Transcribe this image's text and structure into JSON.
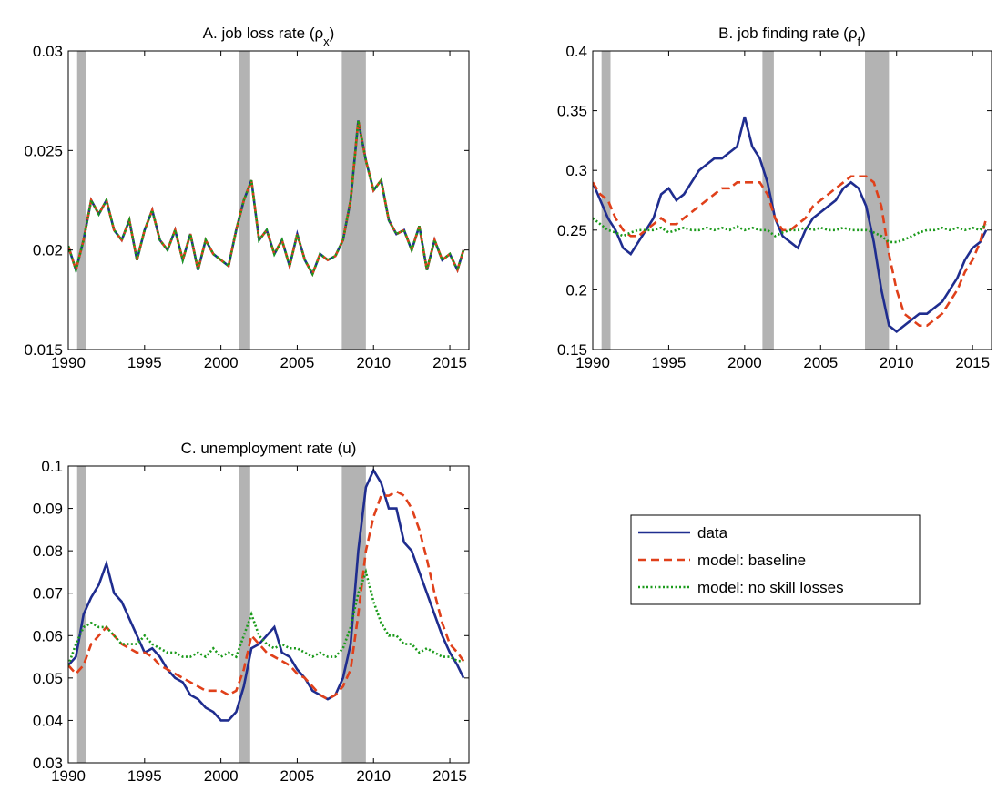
{
  "chart_data": [
    {
      "type": "line",
      "title": [
        "A. job loss rate (ρ",
        "x",
        ")"
      ],
      "x": [
        1990,
        1990.5,
        1991,
        1991.5,
        1992,
        1992.5,
        1993,
        1993.5,
        1994,
        1994.5,
        1995,
        1995.5,
        1996,
        1996.5,
        1997,
        1997.5,
        1998,
        1998.5,
        1999,
        1999.5,
        2000,
        2000.5,
        2001,
        2001.5,
        2002,
        2002.5,
        2003,
        2003.5,
        2004,
        2004.5,
        2005,
        2005.5,
        2006,
        2006.5,
        2007,
        2007.5,
        2008,
        2008.5,
        2009,
        2009.5,
        2010,
        2010.5,
        2011,
        2011.5,
        2012,
        2012.5,
        2013,
        2013.5,
        2014,
        2014.5,
        2015,
        2015.5,
        2015.9
      ],
      "series": [
        {
          "color": "#1f2d8f",
          "style": "solid",
          "values": [
            0.0202,
            0.019,
            0.0205,
            0.0225,
            0.0218,
            0.0225,
            0.021,
            0.0205,
            0.0215,
            0.0195,
            0.021,
            0.022,
            0.0205,
            0.02,
            0.021,
            0.0195,
            0.0208,
            0.019,
            0.0205,
            0.0198,
            0.0195,
            0.0192,
            0.021,
            0.0225,
            0.0235,
            0.0205,
            0.021,
            0.0198,
            0.0205,
            0.0192,
            0.0208,
            0.0195,
            0.0188,
            0.0198,
            0.0195,
            0.0197,
            0.0205,
            0.0225,
            0.0265,
            0.0245,
            0.023,
            0.0235,
            0.0215,
            0.0208,
            0.021,
            0.02,
            0.0212,
            0.019,
            0.0205,
            0.0195,
            0.0198,
            0.019,
            0.02
          ]
        },
        {
          "color": "#e0401a",
          "style": "dashed",
          "values": [
            0.0202,
            0.019,
            0.0205,
            0.0225,
            0.0218,
            0.0225,
            0.021,
            0.0205,
            0.0215,
            0.0195,
            0.021,
            0.022,
            0.0205,
            0.02,
            0.021,
            0.0195,
            0.0208,
            0.019,
            0.0205,
            0.0198,
            0.0195,
            0.0192,
            0.021,
            0.0225,
            0.0235,
            0.0205,
            0.021,
            0.0198,
            0.0205,
            0.0192,
            0.0208,
            0.0195,
            0.0188,
            0.0198,
            0.0195,
            0.0197,
            0.0205,
            0.0225,
            0.0265,
            0.0245,
            0.023,
            0.0235,
            0.0215,
            0.0208,
            0.021,
            0.02,
            0.0212,
            0.019,
            0.0205,
            0.0195,
            0.0198,
            0.019,
            0.02
          ]
        },
        {
          "color": "#1a9a1a",
          "style": "dotted",
          "values": [
            0.0202,
            0.019,
            0.0205,
            0.0225,
            0.0218,
            0.0225,
            0.021,
            0.0205,
            0.0215,
            0.0195,
            0.021,
            0.022,
            0.0205,
            0.02,
            0.021,
            0.0195,
            0.0208,
            0.019,
            0.0205,
            0.0198,
            0.0195,
            0.0192,
            0.021,
            0.0225,
            0.0235,
            0.0205,
            0.021,
            0.0198,
            0.0205,
            0.0192,
            0.0208,
            0.0195,
            0.0188,
            0.0198,
            0.0195,
            0.0197,
            0.0205,
            0.0225,
            0.0265,
            0.0245,
            0.023,
            0.0235,
            0.0215,
            0.0208,
            0.021,
            0.02,
            0.0212,
            0.019,
            0.0205,
            0.0195,
            0.0198,
            0.019,
            0.02
          ]
        }
      ],
      "recessions": [
        [
          1990.58,
          1991.17
        ],
        [
          2001.17,
          2001.92
        ],
        [
          2007.92,
          2009.5
        ]
      ],
      "recession_color": "#b3b3b3",
      "xlim": [
        1990,
        2016.25
      ],
      "xticks": [
        1990,
        1995,
        2000,
        2005,
        2010,
        2015
      ],
      "ylim": [
        0.015,
        0.03
      ],
      "yticks": [
        0.015,
        0.02,
        0.025,
        0.03
      ]
    },
    {
      "type": "line",
      "title": [
        "B. job finding rate (ρ",
        "f",
        ")"
      ],
      "x": [
        1990,
        1990.5,
        1991,
        1991.5,
        1992,
        1992.5,
        1993,
        1993.5,
        1994,
        1994.5,
        1995,
        1995.5,
        1996,
        1996.5,
        1997,
        1997.5,
        1998,
        1998.5,
        1999,
        1999.5,
        2000,
        2000.5,
        2001,
        2001.5,
        2002,
        2002.5,
        2003,
        2003.5,
        2004,
        2004.5,
        2005,
        2005.5,
        2006,
        2006.5,
        2007,
        2007.5,
        2008,
        2008.5,
        2009,
        2009.5,
        2010,
        2010.5,
        2011,
        2011.5,
        2012,
        2012.5,
        2013,
        2013.5,
        2014,
        2014.5,
        2015,
        2015.5,
        2015.9
      ],
      "series": [
        {
          "color": "#1f2d8f",
          "style": "solid",
          "values": [
            0.29,
            0.275,
            0.26,
            0.25,
            0.235,
            0.23,
            0.24,
            0.25,
            0.26,
            0.28,
            0.285,
            0.275,
            0.28,
            0.29,
            0.3,
            0.305,
            0.31,
            0.31,
            0.315,
            0.32,
            0.345,
            0.32,
            0.31,
            0.29,
            0.26,
            0.245,
            0.24,
            0.235,
            0.25,
            0.26,
            0.265,
            0.27,
            0.275,
            0.285,
            0.29,
            0.285,
            0.27,
            0.24,
            0.2,
            0.17,
            0.165,
            0.17,
            0.175,
            0.18,
            0.18,
            0.185,
            0.19,
            0.2,
            0.21,
            0.225,
            0.235,
            0.24,
            0.25
          ]
        },
        {
          "color": "#e0401a",
          "style": "dashed",
          "values": [
            0.29,
            0.28,
            0.275,
            0.26,
            0.25,
            0.245,
            0.245,
            0.25,
            0.255,
            0.26,
            0.255,
            0.255,
            0.26,
            0.265,
            0.27,
            0.275,
            0.28,
            0.285,
            0.285,
            0.29,
            0.29,
            0.29,
            0.29,
            0.28,
            0.26,
            0.25,
            0.25,
            0.255,
            0.26,
            0.27,
            0.275,
            0.28,
            0.285,
            0.29,
            0.295,
            0.295,
            0.295,
            0.29,
            0.27,
            0.23,
            0.2,
            0.18,
            0.175,
            0.17,
            0.17,
            0.175,
            0.18,
            0.19,
            0.2,
            0.215,
            0.225,
            0.24,
            0.26
          ]
        },
        {
          "color": "#1a9a1a",
          "style": "dotted",
          "values": [
            0.26,
            0.255,
            0.25,
            0.248,
            0.245,
            0.248,
            0.25,
            0.25,
            0.25,
            0.252,
            0.248,
            0.25,
            0.252,
            0.25,
            0.25,
            0.252,
            0.25,
            0.252,
            0.25,
            0.253,
            0.25,
            0.252,
            0.25,
            0.25,
            0.245,
            0.248,
            0.25,
            0.25,
            0.252,
            0.25,
            0.252,
            0.25,
            0.25,
            0.252,
            0.25,
            0.25,
            0.25,
            0.248,
            0.245,
            0.24,
            0.24,
            0.242,
            0.245,
            0.248,
            0.25,
            0.25,
            0.252,
            0.25,
            0.252,
            0.25,
            0.252,
            0.25,
            0.255
          ]
        }
      ],
      "recessions": [
        [
          1990.58,
          1991.17
        ],
        [
          2001.17,
          2001.92
        ],
        [
          2007.92,
          2009.5
        ]
      ],
      "recession_color": "#b3b3b3",
      "xlim": [
        1990,
        2016.25
      ],
      "xticks": [
        1990,
        1995,
        2000,
        2005,
        2010,
        2015
      ],
      "ylim": [
        0.15,
        0.4
      ],
      "yticks": [
        0.15,
        0.2,
        0.25,
        0.3,
        0.35,
        0.4
      ]
    },
    {
      "type": "line",
      "title": "C. unemployment rate (u)",
      "x": [
        1990,
        1990.5,
        1991,
        1991.5,
        1992,
        1992.5,
        1993,
        1993.5,
        1994,
        1994.5,
        1995,
        1995.5,
        1996,
        1996.5,
        1997,
        1997.5,
        1998,
        1998.5,
        1999,
        1999.5,
        2000,
        2000.5,
        2001,
        2001.5,
        2002,
        2002.5,
        2003,
        2003.5,
        2004,
        2004.5,
        2005,
        2005.5,
        2006,
        2006.5,
        2007,
        2007.5,
        2008,
        2008.5,
        2009,
        2009.5,
        2010,
        2010.5,
        2011,
        2011.5,
        2012,
        2012.5,
        2013,
        2013.5,
        2014,
        2014.5,
        2015,
        2015.5,
        2015.9
      ],
      "series": [
        {
          "name": "data",
          "color": "#1f2d8f",
          "style": "solid",
          "values": [
            0.053,
            0.055,
            0.065,
            0.069,
            0.072,
            0.077,
            0.07,
            0.068,
            0.064,
            0.06,
            0.056,
            0.057,
            0.055,
            0.052,
            0.05,
            0.049,
            0.046,
            0.045,
            0.043,
            0.042,
            0.04,
            0.04,
            0.042,
            0.048,
            0.057,
            0.058,
            0.06,
            0.062,
            0.056,
            0.055,
            0.052,
            0.05,
            0.047,
            0.046,
            0.045,
            0.046,
            0.05,
            0.058,
            0.08,
            0.095,
            0.099,
            0.096,
            0.09,
            0.09,
            0.082,
            0.08,
            0.075,
            0.07,
            0.065,
            0.06,
            0.056,
            0.053,
            0.05
          ]
        },
        {
          "name": "model: baseline",
          "color": "#e0401a",
          "style": "dashed",
          "values": [
            0.053,
            0.051,
            0.053,
            0.058,
            0.06,
            0.062,
            0.06,
            0.058,
            0.057,
            0.056,
            0.056,
            0.055,
            0.053,
            0.052,
            0.051,
            0.05,
            0.049,
            0.048,
            0.047,
            0.047,
            0.047,
            0.046,
            0.047,
            0.052,
            0.06,
            0.058,
            0.056,
            0.055,
            0.054,
            0.053,
            0.051,
            0.05,
            0.048,
            0.046,
            0.045,
            0.046,
            0.048,
            0.052,
            0.065,
            0.08,
            0.088,
            0.093,
            0.093,
            0.094,
            0.093,
            0.09,
            0.085,
            0.078,
            0.07,
            0.063,
            0.058,
            0.056,
            0.054
          ]
        },
        {
          "name": "model: no skill losses",
          "color": "#1a9a1a",
          "style": "dotted",
          "values": [
            0.053,
            0.058,
            0.062,
            0.063,
            0.062,
            0.062,
            0.06,
            0.058,
            0.058,
            0.058,
            0.06,
            0.058,
            0.057,
            0.056,
            0.056,
            0.055,
            0.055,
            0.056,
            0.055,
            0.057,
            0.055,
            0.056,
            0.055,
            0.06,
            0.065,
            0.06,
            0.058,
            0.057,
            0.058,
            0.057,
            0.057,
            0.056,
            0.055,
            0.056,
            0.055,
            0.055,
            0.057,
            0.062,
            0.07,
            0.075,
            0.068,
            0.063,
            0.06,
            0.06,
            0.058,
            0.058,
            0.056,
            0.057,
            0.056,
            0.055,
            0.055,
            0.054,
            0.054
          ]
        }
      ],
      "recessions": [
        [
          1990.58,
          1991.17
        ],
        [
          2001.17,
          2001.92
        ],
        [
          2007.92,
          2009.5
        ]
      ],
      "recession_color": "#b3b3b3",
      "xlim": [
        1990,
        2016.25
      ],
      "xticks": [
        1990,
        1995,
        2000,
        2005,
        2010,
        2015
      ],
      "ylim": [
        0.03,
        0.1
      ],
      "yticks": [
        0.03,
        0.04,
        0.05,
        0.06,
        0.07,
        0.08,
        0.09,
        0.1
      ],
      "legend": "outside right"
    }
  ]
}
